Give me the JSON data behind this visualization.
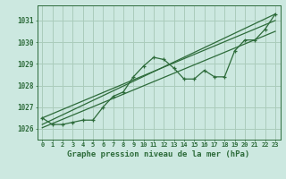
{
  "title": "Graphe pression niveau de la mer (hPa)",
  "background_color": "#cce8e0",
  "grid_color": "#aaccbb",
  "line_color": "#2d6b3a",
  "x_values": [
    0,
    1,
    2,
    3,
    4,
    5,
    6,
    7,
    8,
    9,
    10,
    11,
    12,
    13,
    14,
    15,
    16,
    17,
    18,
    19,
    20,
    21,
    22,
    23
  ],
  "y_main": [
    1026.5,
    1026.2,
    1026.2,
    1026.3,
    1026.4,
    1026.4,
    1027.0,
    1027.5,
    1027.7,
    1028.4,
    1028.9,
    1029.3,
    1029.2,
    1028.8,
    1028.3,
    1028.3,
    1028.7,
    1028.4,
    1028.4,
    1029.6,
    1030.1,
    1030.1,
    1030.6,
    1031.3
  ],
  "ylim": [
    1025.5,
    1031.7
  ],
  "xlim": [
    -0.5,
    23.5
  ],
  "yticks": [
    1026,
    1027,
    1028,
    1029,
    1030,
    1031
  ],
  "xtick_labels": [
    "0",
    "1",
    "2",
    "3",
    "4",
    "5",
    "6",
    "7",
    "8",
    "9",
    "10",
    "11",
    "12",
    "13",
    "14",
    "15",
    "16",
    "17",
    "18",
    "19",
    "20",
    "21",
    "22",
    "23"
  ],
  "trend_line1": [
    1026.2,
    1031.3
  ],
  "trend_line1_x": [
    0,
    23
  ],
  "trend_line2": [
    1026.5,
    1031.0
  ],
  "trend_line2_x": [
    0,
    23
  ]
}
